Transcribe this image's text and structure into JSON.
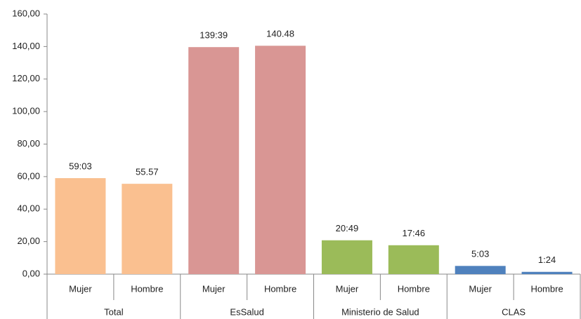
{
  "chart_data": {
    "type": "bar",
    "categories": [
      "Mujer",
      "Hombre",
      "Mujer",
      "Hombre",
      "Mujer",
      "Hombre",
      "Mujer",
      "Hombre"
    ],
    "groups": [
      "Total",
      "EsSalud",
      "Ministerio de Salud",
      "CLAS"
    ],
    "colors": [
      "#fac090",
      "#d99694",
      "#9bbb59",
      "#4f81bd"
    ],
    "values": [
      59.05,
      55.57,
      139.65,
      140.48,
      20.82,
      17.77,
      5.05,
      1.4
    ],
    "value_labels": [
      "59:03",
      "55.57",
      "139:39",
      "140.48",
      "20:49",
      "17:46",
      "5:03",
      "1:24"
    ],
    "ylim": [
      0,
      160
    ],
    "yticks": [
      {
        "value": 0,
        "label": "0,00"
      },
      {
        "value": 20,
        "label": "20,00"
      },
      {
        "value": 40,
        "label": "40,00"
      },
      {
        "value": 60,
        "label": "60,00"
      },
      {
        "value": 80,
        "label": "80,00"
      },
      {
        "value": 100,
        "label": "100,00"
      },
      {
        "value": 120,
        "label": "120,00"
      },
      {
        "value": 140,
        "label": "140,00"
      },
      {
        "value": 160,
        "label": "160,00"
      }
    ]
  }
}
